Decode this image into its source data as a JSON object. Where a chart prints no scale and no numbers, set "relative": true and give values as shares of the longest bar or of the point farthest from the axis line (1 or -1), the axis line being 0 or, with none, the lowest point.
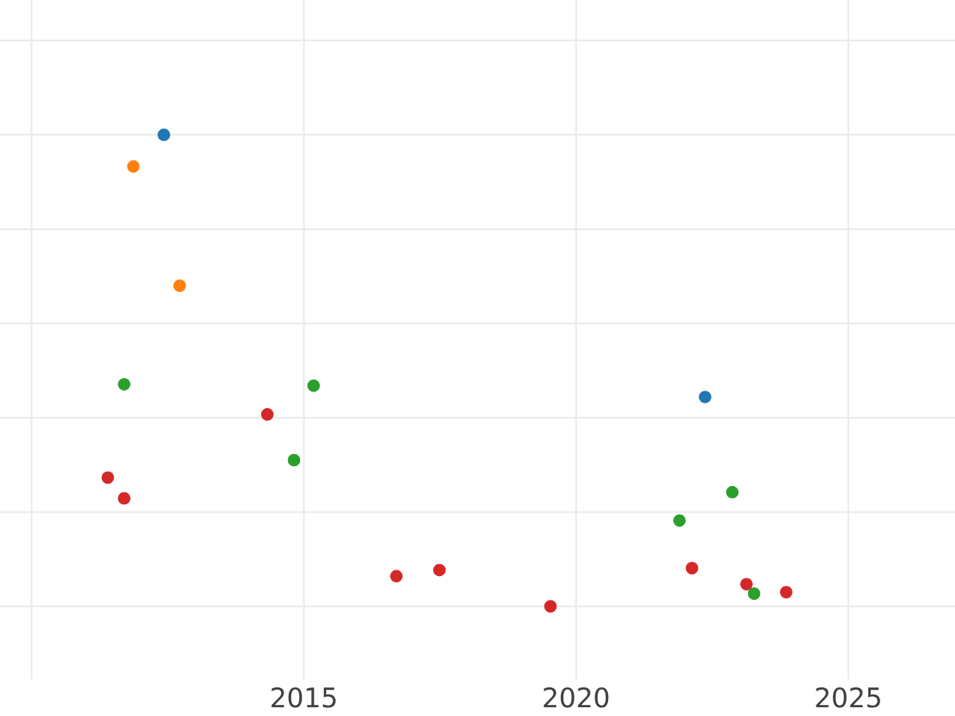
{
  "chart_data": {
    "type": "scatter",
    "relative": true,
    "grid": true,
    "xlim": [
      2009.42,
      2026.96
    ],
    "xticks": [
      {
        "value": 2010,
        "label": null
      },
      2015,
      2020,
      2025
    ],
    "series": [
      {
        "color": "#1f77b4",
        "x": [
          2012.43,
          2022.37
        ],
        "values": [
          1.0,
          0.444
        ]
      },
      {
        "color": "#ff7f0e",
        "x": [
          2011.87,
          2012.72
        ],
        "values": [
          0.933,
          0.68
        ]
      },
      {
        "color": "#2ca02c",
        "x": [
          2011.7,
          2015.18,
          2014.82,
          2022.87,
          2021.9,
          2023.27
        ],
        "values": [
          0.471,
          0.468,
          0.31,
          0.242,
          0.182,
          0.027
        ]
      },
      {
        "color": "#d62728",
        "x": [
          2011.4,
          2011.7,
          2014.33,
          2016.7,
          2017.49,
          2019.53,
          2022.13,
          2023.13,
          2023.86
        ],
        "values": [
          0.273,
          0.229,
          0.407,
          0.064,
          0.077,
          0.0,
          0.081,
          0.047,
          0.03
        ]
      }
    ]
  }
}
